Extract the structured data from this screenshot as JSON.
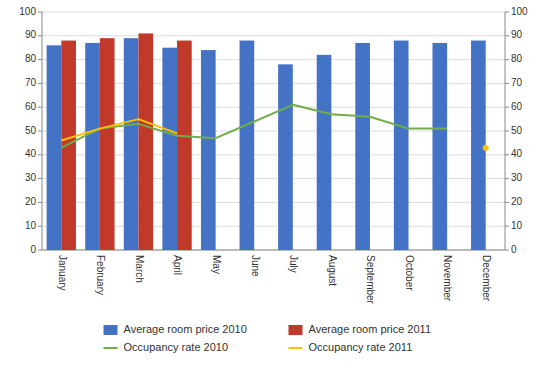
{
  "chart_data": {
    "type": "bar",
    "categories": [
      "January",
      "February",
      "March",
      "April",
      "May",
      "June",
      "July",
      "August",
      "September",
      "October",
      "November",
      "December"
    ],
    "series": [
      {
        "name": "Average room price 2010",
        "type": "bar",
        "color": "#4472c4",
        "values": [
          86,
          87,
          89,
          85,
          84,
          88,
          78,
          82,
          87,
          88,
          87,
          88
        ]
      },
      {
        "name": "Average room price 2011",
        "type": "bar",
        "color": "#c0392b",
        "values": [
          88,
          89,
          91,
          88,
          null,
          null,
          null,
          null,
          null,
          null,
          null,
          null
        ]
      },
      {
        "name": "Occupancy rate 2010",
        "type": "line",
        "color": "#70ad47",
        "axis": "y2",
        "values": [
          43,
          51,
          53,
          48,
          47,
          54,
          61,
          57,
          56,
          51,
          51,
          null
        ]
      },
      {
        "name": "Occupancy rate 2011",
        "type": "line",
        "color": "#ffc000",
        "axis": "y2",
        "values": [
          46,
          51,
          55,
          49,
          null,
          null,
          null,
          null,
          null,
          null,
          null,
          43
        ]
      }
    ],
    "ylim": [
      0,
      100
    ],
    "yticks": [
      0,
      10,
      20,
      30,
      40,
      50,
      60,
      70,
      80,
      90,
      100
    ],
    "y2lim": [
      0,
      100
    ],
    "y2ticks": [
      0,
      10,
      20,
      30,
      40,
      50,
      60,
      70,
      80,
      90,
      100
    ],
    "grid": true,
    "legend": "bottom"
  }
}
